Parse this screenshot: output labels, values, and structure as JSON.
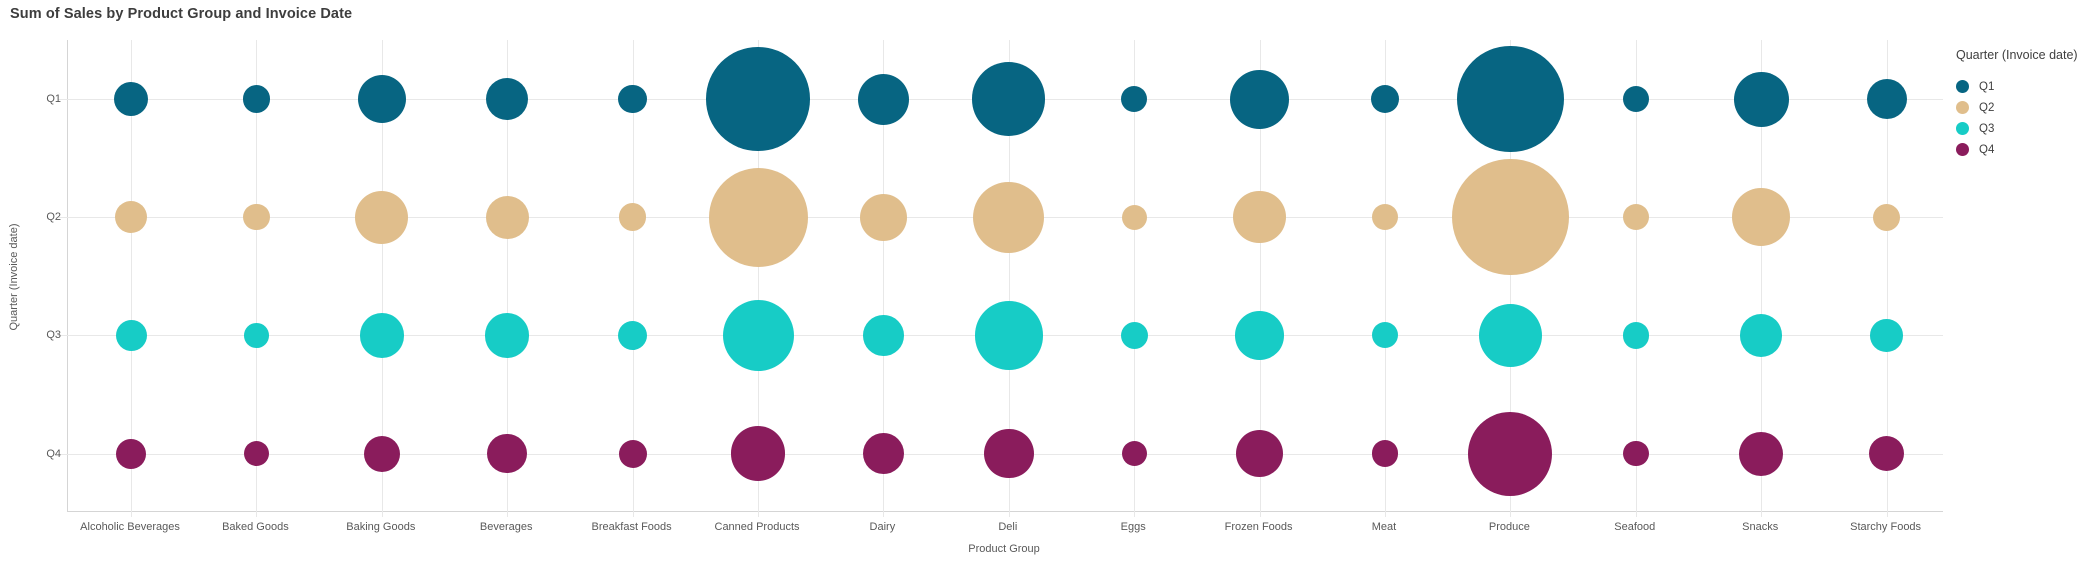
{
  "header": {
    "title": "Sum of Sales by Product Group and Invoice Date"
  },
  "chart_data": {
    "type": "scatter",
    "variant": "bubble",
    "title": "Sum of Sales by Product Group and Invoice Date",
    "xlabel": "Product Group",
    "ylabel": "Quarter (Invoice date)",
    "size_measure": "Sum of Sales",
    "grid": true,
    "legend": {
      "title": "Quarter (Invoice date)",
      "position": "right"
    },
    "x_categories": [
      "Alcoholic Beverages",
      "Baked Goods",
      "Baking Goods",
      "Beverages",
      "Breakfast Foods",
      "Canned Products",
      "Dairy",
      "Deli",
      "Eggs",
      "Frozen Foods",
      "Meat",
      "Produce",
      "Seafood",
      "Snacks",
      "Starchy Foods"
    ],
    "y_categories": [
      "Q1",
      "Q2",
      "Q3",
      "Q4"
    ],
    "series": [
      {
        "name": "Q1",
        "color": "#076582",
        "bubble_radius_px": [
          17.0,
          13.7,
          24.0,
          21.2,
          14.3,
          51.7,
          25.5,
          36.7,
          13.0,
          29.5,
          14.2,
          53.3,
          13.0,
          27.5,
          20.0
        ]
      },
      {
        "name": "Q2",
        "color": "#e0be8c",
        "bubble_radius_px": [
          16.3,
          13.2,
          26.7,
          21.5,
          13.8,
          49.5,
          23.7,
          35.5,
          12.7,
          26.3,
          13.3,
          58.3,
          13.3,
          29.2,
          13.7
        ]
      },
      {
        "name": "Q3",
        "color": "#17ccc6",
        "bubble_radius_px": [
          15.5,
          12.3,
          22.3,
          22.3,
          14.7,
          35.5,
          20.3,
          34.2,
          13.7,
          24.2,
          13.0,
          31.7,
          13.3,
          21.3,
          16.3
        ]
      },
      {
        "name": "Q4",
        "color": "#8a1c5c",
        "bubble_radius_px": [
          15.0,
          12.7,
          18.0,
          19.8,
          14.0,
          27.2,
          20.5,
          24.8,
          12.5,
          23.7,
          13.3,
          42.0,
          12.8,
          22.0,
          17.5
        ]
      }
    ]
  },
  "colors": {
    "background": "#ffffff",
    "title_text": "#3d3d3d",
    "axis_text": "#595959",
    "grid_line": "#e8e8e8",
    "axis_line": "#d5d5d5"
  }
}
